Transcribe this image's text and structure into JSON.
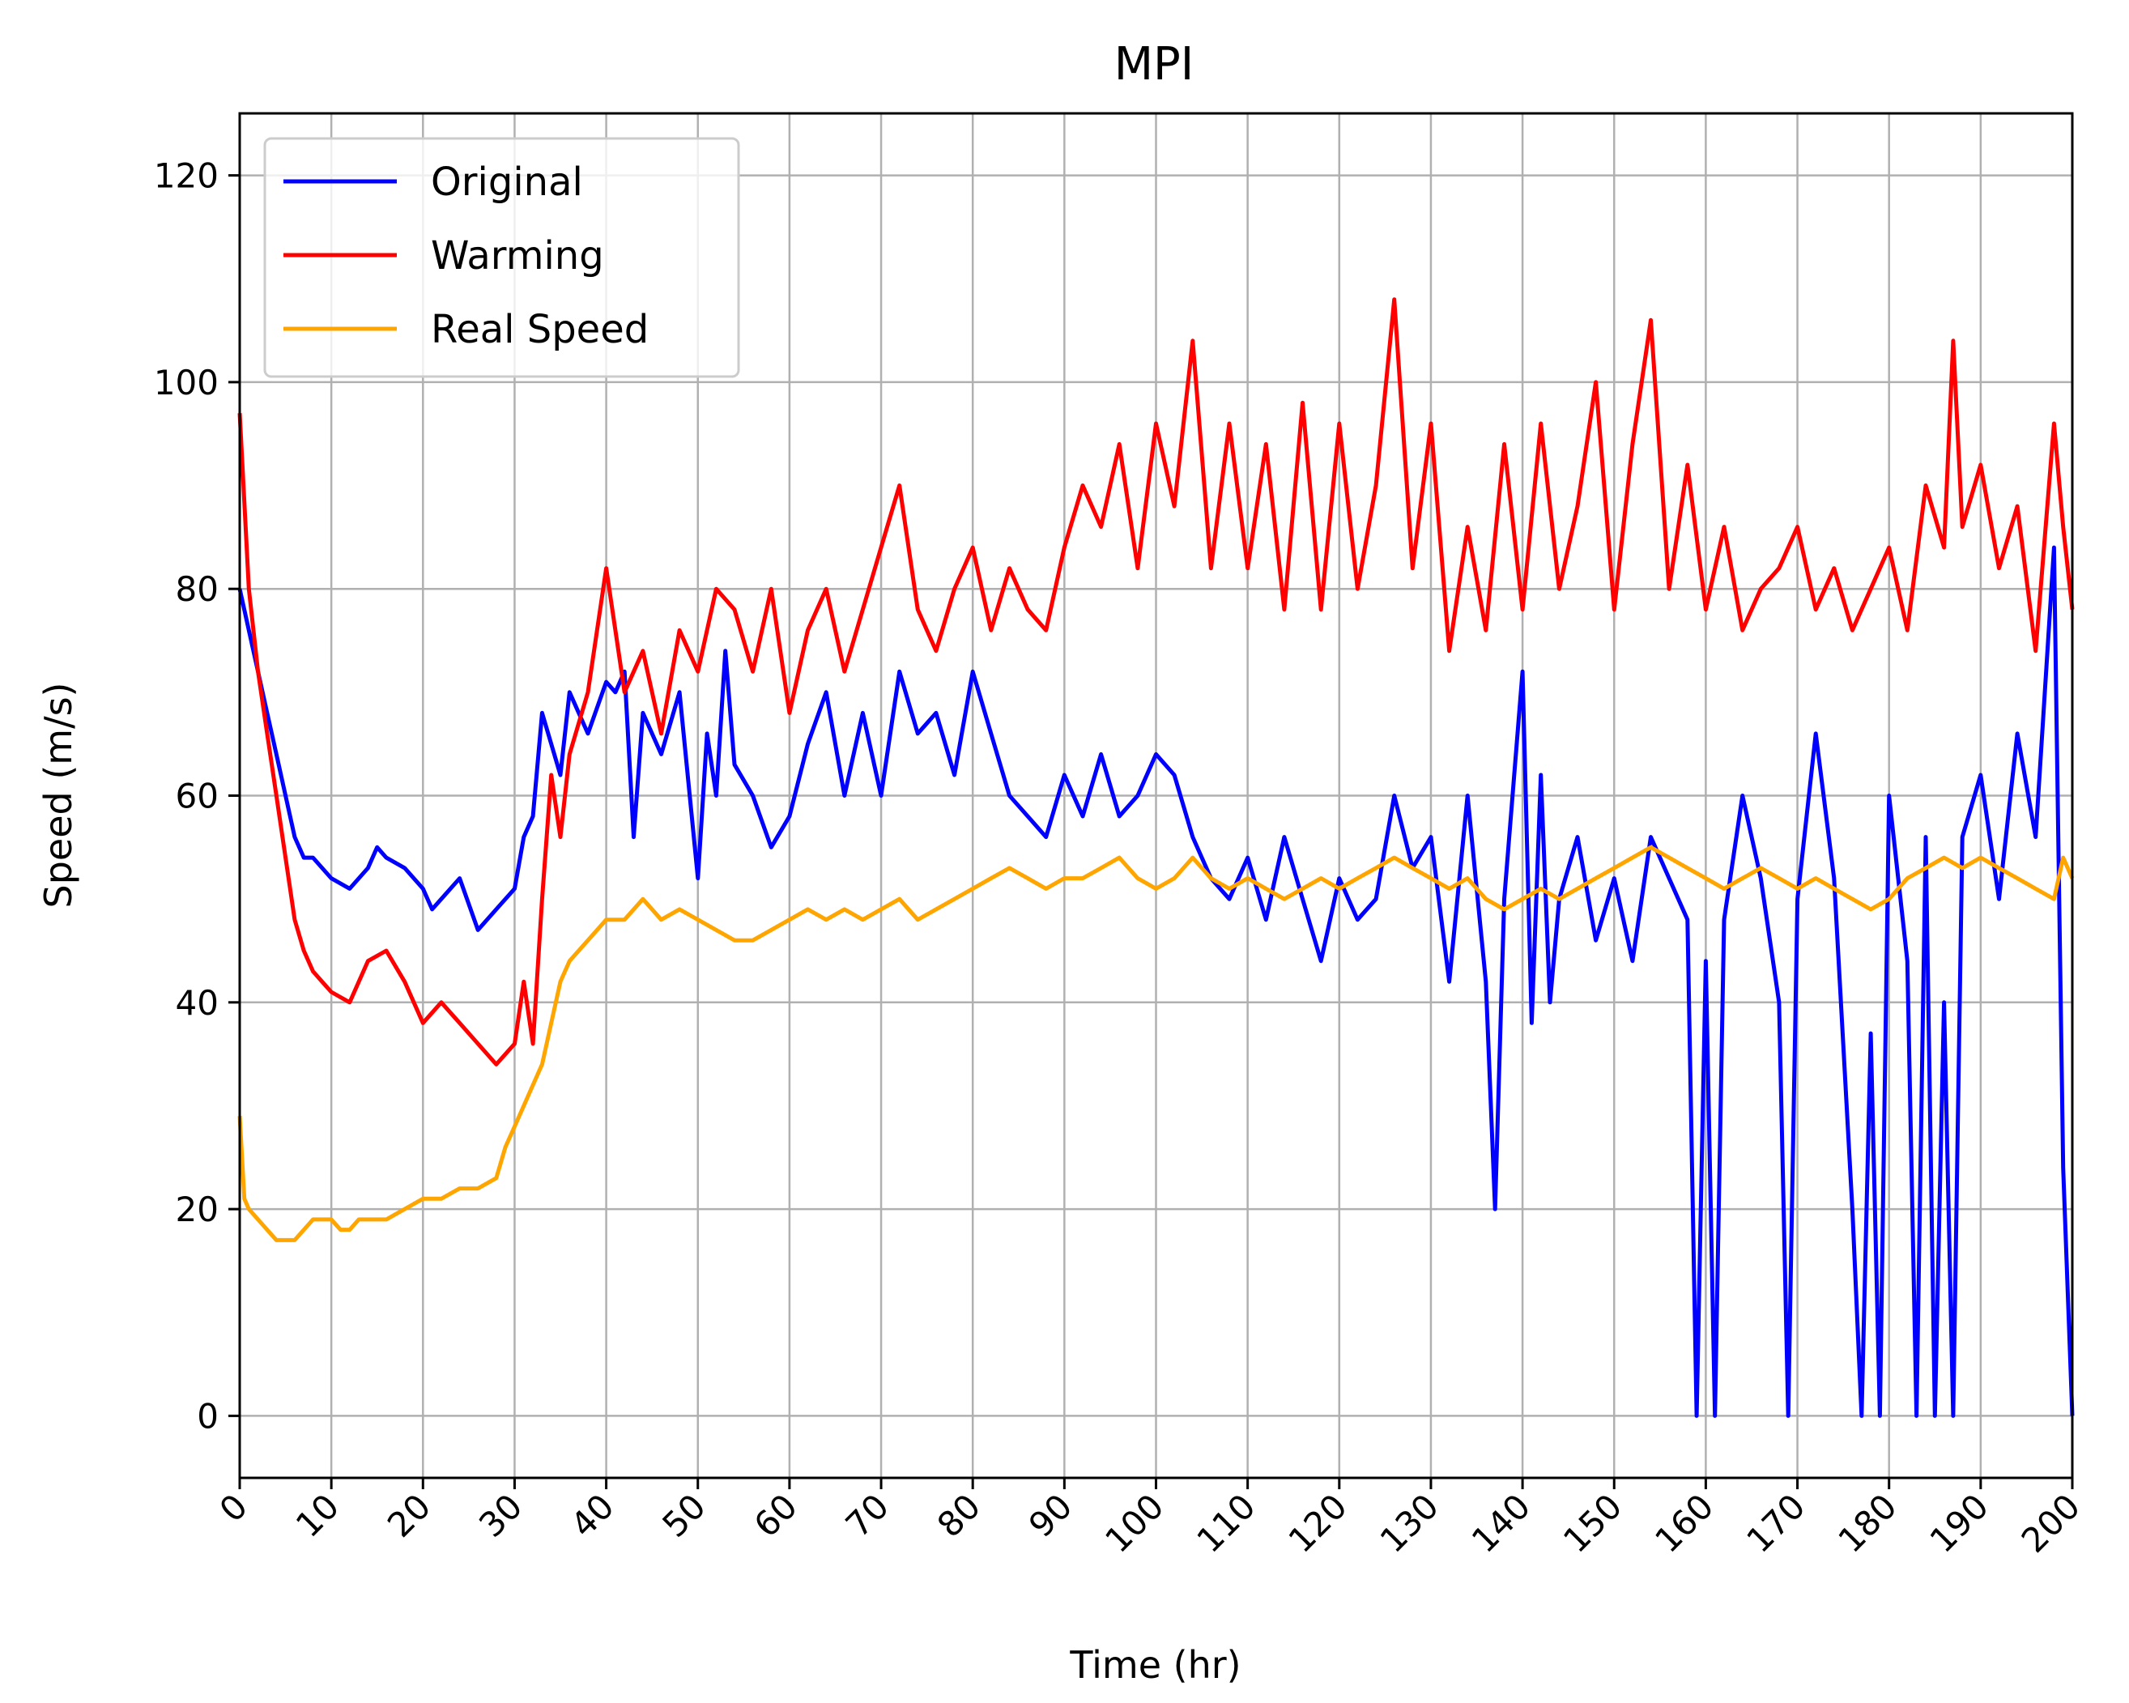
{
  "chart_data": {
    "type": "line",
    "title": "MPI",
    "xlabel": "Time (hr)",
    "ylabel": "Speed (m/s)",
    "xlim": [
      0,
      200
    ],
    "ylim": [
      -6,
      126
    ],
    "xticks": [
      0,
      10,
      20,
      30,
      40,
      50,
      60,
      70,
      80,
      90,
      100,
      110,
      120,
      130,
      140,
      150,
      160,
      170,
      180,
      190,
      200
    ],
    "yticks": [
      0,
      20,
      40,
      60,
      80,
      100,
      120
    ],
    "grid": true,
    "legend_position": "top-left",
    "series": [
      {
        "name": "Original",
        "color": "#0000ff",
        "x": [
          0,
          1,
          2,
          3,
          4,
          5,
          6,
          7,
          8,
          9,
          10,
          12,
          14,
          15,
          16,
          18,
          20,
          21,
          22,
          24,
          26,
          28,
          30,
          31,
          32,
          33,
          34,
          35,
          36,
          38,
          40,
          41,
          42,
          43,
          44,
          46,
          48,
          50,
          51,
          52,
          53,
          54,
          56,
          58,
          60,
          62,
          64,
          66,
          68,
          70,
          72,
          74,
          76,
          78,
          80,
          82,
          84,
          86,
          88,
          90,
          92,
          94,
          96,
          98,
          100,
          102,
          104,
          106,
          108,
          110,
          112,
          114,
          116,
          118,
          120,
          122,
          124,
          126,
          128,
          130,
          132,
          134,
          136,
          137,
          138,
          140,
          141,
          142,
          143,
          144,
          146,
          148,
          150,
          152,
          154,
          156,
          158,
          159,
          160,
          161,
          162,
          164,
          166,
          168,
          169,
          170,
          172,
          174,
          176,
          177,
          178,
          179,
          180,
          182,
          183,
          184,
          185,
          186,
          187,
          188,
          190,
          192,
          194,
          196,
          198,
          199,
          200
        ],
        "values": [
          80,
          76,
          72,
          68,
          64,
          60,
          56,
          54,
          54,
          53,
          52,
          51,
          53,
          55,
          54,
          53,
          51,
          49,
          50,
          52,
          47,
          49,
          51,
          56,
          58,
          68,
          65,
          62,
          70,
          66,
          71,
          70,
          72,
          56,
          68,
          64,
          70,
          52,
          66,
          60,
          74,
          63,
          60,
          55,
          58,
          65,
          70,
          60,
          68,
          60,
          72,
          66,
          68,
          62,
          72,
          66,
          60,
          58,
          56,
          62,
          58,
          64,
          58,
          60,
          64,
          62,
          56,
          52,
          50,
          54,
          48,
          56,
          50,
          44,
          52,
          48,
          50,
          60,
          53,
          56,
          42,
          60,
          42,
          20,
          50,
          72,
          38,
          62,
          40,
          50,
          56,
          46,
          52,
          44,
          56,
          52,
          48,
          0,
          44,
          0,
          48,
          60,
          52,
          40,
          0,
          50,
          66,
          52,
          20,
          0,
          37,
          0,
          60,
          44,
          0,
          56,
          0,
          40,
          0,
          56,
          62,
          50,
          66,
          56,
          84,
          24,
          0
        ]
      },
      {
        "name": "Warming",
        "color": "#ff0000",
        "x": [
          0,
          1,
          2,
          3,
          4,
          5,
          6,
          7,
          8,
          9,
          10,
          12,
          14,
          16,
          18,
          20,
          22,
          24,
          26,
          28,
          30,
          31,
          32,
          33,
          34,
          35,
          36,
          38,
          40,
          42,
          44,
          46,
          48,
          50,
          52,
          54,
          56,
          58,
          60,
          62,
          64,
          66,
          68,
          70,
          72,
          74,
          76,
          78,
          80,
          82,
          84,
          86,
          88,
          90,
          92,
          94,
          96,
          98,
          100,
          102,
          104,
          106,
          108,
          110,
          112,
          114,
          116,
          118,
          120,
          122,
          124,
          126,
          128,
          130,
          132,
          134,
          136,
          138,
          140,
          142,
          144,
          146,
          148,
          150,
          152,
          154,
          156,
          158,
          160,
          162,
          164,
          166,
          168,
          170,
          172,
          174,
          176,
          178,
          180,
          182,
          184,
          186,
          187,
          188,
          190,
          192,
          194,
          196,
          198,
          199,
          200
        ],
        "values": [
          97,
          80,
          72,
          66,
          60,
          54,
          48,
          45,
          43,
          42,
          41,
          40,
          44,
          45,
          42,
          38,
          40,
          38,
          36,
          34,
          36,
          42,
          36,
          50,
          62,
          56,
          64,
          70,
          82,
          70,
          74,
          66,
          76,
          72,
          80,
          78,
          72,
          80,
          68,
          76,
          80,
          72,
          78,
          84,
          90,
          78,
          74,
          80,
          84,
          76,
          82,
          78,
          76,
          84,
          90,
          86,
          94,
          82,
          96,
          88,
          104,
          82,
          96,
          82,
          94,
          78,
          98,
          78,
          96,
          80,
          90,
          108,
          82,
          96,
          74,
          86,
          76,
          94,
          78,
          96,
          80,
          88,
          100,
          78,
          94,
          106,
          80,
          92,
          78,
          86,
          76,
          80,
          82,
          86,
          78,
          82,
          76,
          80,
          84,
          76,
          90,
          84,
          104,
          86,
          92,
          82,
          88,
          74,
          96,
          86,
          78
        ]
      },
      {
        "name": "Real Speed",
        "color": "#ffa500",
        "x": [
          0,
          0.5,
          1,
          2,
          3,
          4,
          5,
          6,
          7,
          8,
          9,
          10,
          11,
          12,
          13,
          14,
          15,
          16,
          18,
          20,
          22,
          24,
          26,
          28,
          29,
          30,
          31,
          32,
          33,
          34,
          35,
          36,
          38,
          40,
          42,
          44,
          46,
          48,
          50,
          52,
          54,
          56,
          58,
          60,
          62,
          64,
          66,
          68,
          70,
          72,
          74,
          76,
          78,
          80,
          82,
          84,
          86,
          88,
          90,
          92,
          94,
          96,
          98,
          100,
          102,
          104,
          106,
          108,
          110,
          112,
          114,
          116,
          118,
          120,
          122,
          124,
          126,
          128,
          130,
          132,
          134,
          136,
          138,
          140,
          142,
          144,
          146,
          148,
          150,
          152,
          154,
          156,
          158,
          160,
          162,
          164,
          166,
          168,
          170,
          172,
          174,
          176,
          178,
          180,
          182,
          184,
          186,
          188,
          190,
          192,
          194,
          196,
          198,
          199,
          200
        ],
        "values": [
          29,
          21,
          20,
          19,
          18,
          17,
          17,
          17,
          18,
          19,
          19,
          19,
          18,
          18,
          19,
          19,
          19,
          19,
          20,
          21,
          21,
          22,
          22,
          23,
          26,
          28,
          30,
          32,
          34,
          38,
          42,
          44,
          46,
          48,
          48,
          50,
          48,
          49,
          48,
          47,
          46,
          46,
          47,
          48,
          49,
          48,
          49,
          48,
          49,
          50,
          48,
          49,
          50,
          51,
          52,
          53,
          52,
          51,
          52,
          52,
          53,
          54,
          52,
          51,
          52,
          54,
          52,
          51,
          52,
          51,
          50,
          51,
          52,
          51,
          52,
          53,
          54,
          53,
          52,
          51,
          52,
          50,
          49,
          50,
          51,
          50,
          51,
          52,
          53,
          54,
          55,
          54,
          53,
          52,
          51,
          52,
          53,
          52,
          51,
          52,
          51,
          50,
          49,
          50,
          52,
          53,
          54,
          53,
          54,
          53,
          52,
          51,
          50,
          54,
          52
        ]
      }
    ]
  }
}
